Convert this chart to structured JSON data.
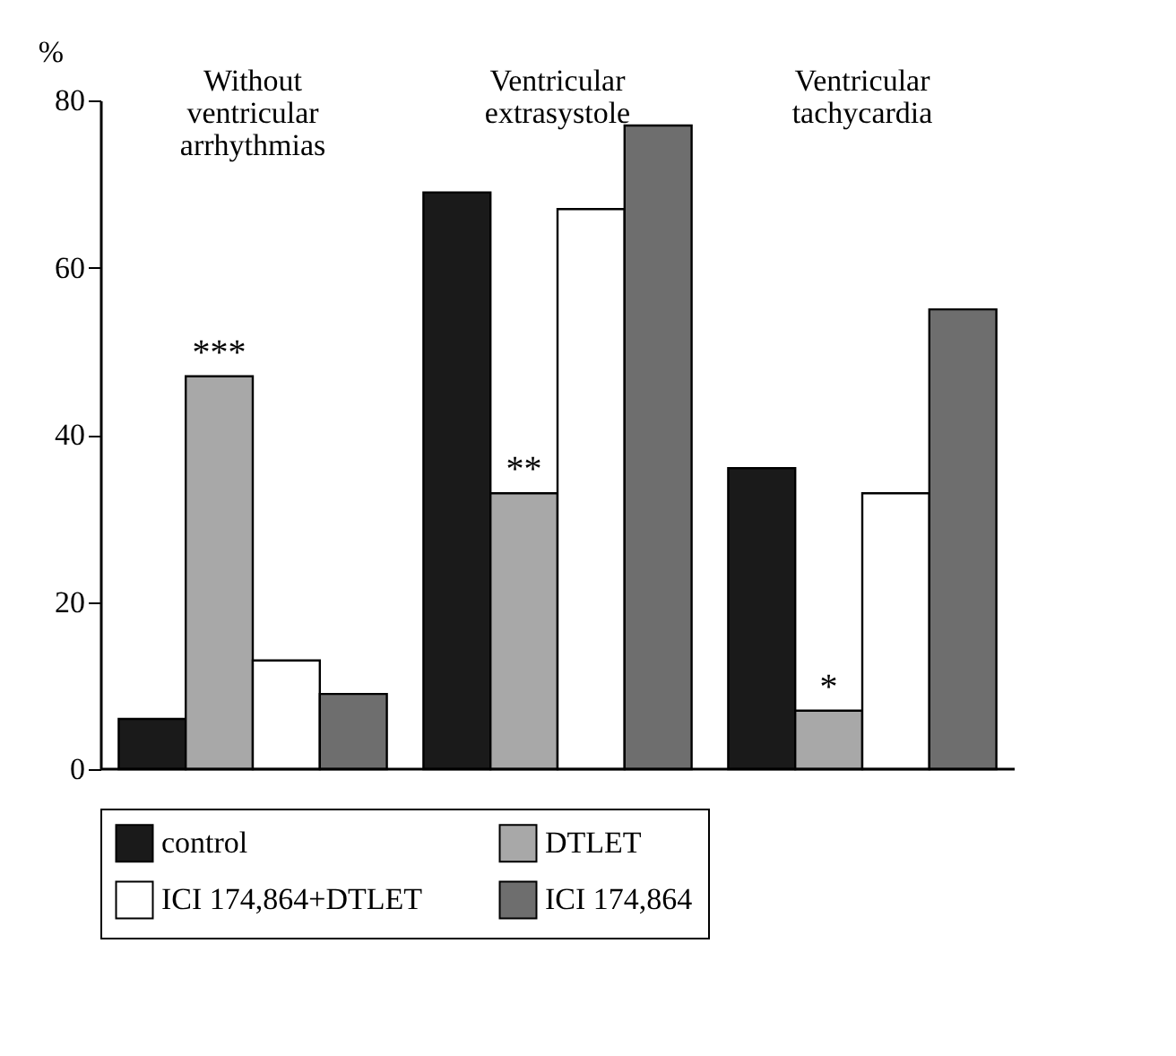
{
  "chart_data": {
    "type": "bar",
    "ylabel": "%",
    "categories": [
      "Without\nventricular\narrhythmias",
      "Ventricular\nextrasystole",
      "Ventricular\ntachycardia"
    ],
    "series": [
      {
        "name": "control",
        "color": "#1a1a1a",
        "values": [
          6,
          69,
          36
        ]
      },
      {
        "name": "DTLET",
        "color": "#a8a8a8",
        "values": [
          47,
          33,
          7
        ]
      },
      {
        "name": "ICI 174,864+DTLET",
        "color": "#ffffff",
        "values": [
          13,
          67,
          33
        ]
      },
      {
        "name": "ICI 174,864",
        "color": "#6e6e6e",
        "values": [
          9,
          77,
          55
        ]
      }
    ],
    "ylim": [
      0,
      80
    ],
    "yticks": [
      0,
      20,
      40,
      60,
      80
    ],
    "grid": false,
    "legend": "bottom",
    "annotations": [
      {
        "text": "***",
        "x": "Without\nventricular\narrhythmias",
        "y": 47
      },
      {
        "text": "**",
        "x": "Ventricular\nextrasystole",
        "y": 33
      },
      {
        "text": "*",
        "x": "Ventricular\ntachycardia",
        "y": 7
      }
    ]
  }
}
